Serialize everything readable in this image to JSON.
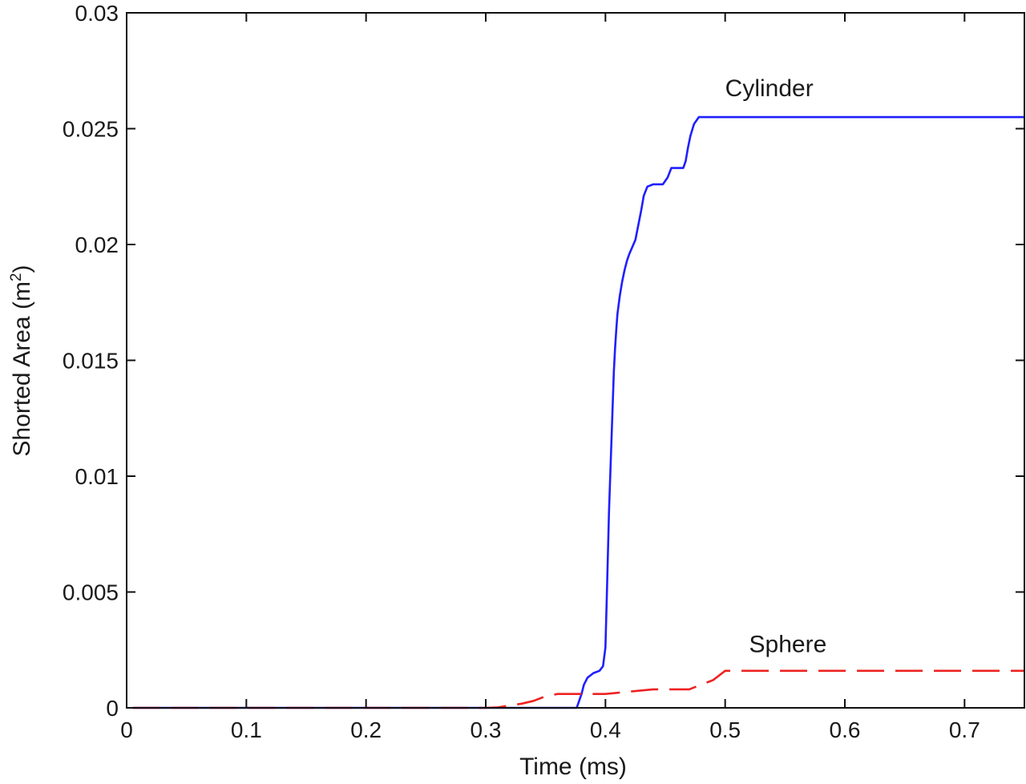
{
  "chart_data": {
    "type": "line",
    "xlabel": "Time (ms)",
    "ylabel_base": "Shorted Area (m",
    "ylabel_sup": "2",
    "ylabel_close": ")",
    "xlim": [
      0,
      0.75
    ],
    "ylim": [
      0,
      0.03
    ],
    "xticks": [
      0,
      0.1,
      0.2,
      0.3,
      0.4,
      0.5,
      0.6,
      0.7
    ],
    "xtick_labels": [
      "0",
      "0.1",
      "0.2",
      "0.3",
      "0.4",
      "0.5",
      "0.6",
      "0.7"
    ],
    "yticks": [
      0,
      0.005,
      0.01,
      0.015,
      0.02,
      0.025,
      0.03
    ],
    "ytick_labels": [
      "0",
      "0.005",
      "0.01",
      "0.015",
      "0.02",
      "0.025",
      "0.03"
    ],
    "grid": false,
    "series": [
      {
        "name": "Cylinder",
        "color": "#1f1fff",
        "style": "solid",
        "x": [
          0.005,
          0.05,
          0.1,
          0.2,
          0.3,
          0.33,
          0.35,
          0.376,
          0.38,
          0.382,
          0.385,
          0.39,
          0.395,
          0.398,
          0.4,
          0.401,
          0.402,
          0.403,
          0.404,
          0.405,
          0.406,
          0.407,
          0.408,
          0.409,
          0.41,
          0.412,
          0.414,
          0.416,
          0.418,
          0.42,
          0.425,
          0.43,
          0.432,
          0.435,
          0.44,
          0.445,
          0.448,
          0.452,
          0.455,
          0.46,
          0.465,
          0.467,
          0.469,
          0.471,
          0.474,
          0.478,
          0.48,
          0.5,
          0.6,
          0.7,
          0.75
        ],
        "y": [
          0,
          0,
          0,
          0,
          0,
          0,
          0,
          0,
          0.0006,
          0.001,
          0.0013,
          0.0015,
          0.0016,
          0.0018,
          0.0026,
          0.0045,
          0.0065,
          0.0085,
          0.01,
          0.0115,
          0.013,
          0.0145,
          0.0155,
          0.0163,
          0.017,
          0.0178,
          0.0184,
          0.0189,
          0.0193,
          0.0196,
          0.0202,
          0.0215,
          0.0221,
          0.0225,
          0.0226,
          0.0226,
          0.0226,
          0.0229,
          0.0233,
          0.0233,
          0.0233,
          0.0236,
          0.0242,
          0.0247,
          0.0252,
          0.0255,
          0.0255,
          0.0255,
          0.0255,
          0.0255,
          0.0255
        ]
      },
      {
        "name": "Sphere",
        "color": "#ee2222",
        "style": "dashed",
        "x": [
          0.005,
          0.1,
          0.2,
          0.3,
          0.31,
          0.32,
          0.33,
          0.34,
          0.35,
          0.36,
          0.38,
          0.4,
          0.42,
          0.44,
          0.46,
          0.47,
          0.48,
          0.49,
          0.5,
          0.6,
          0.7,
          0.75
        ],
        "y": [
          0,
          0,
          0,
          0,
          2e-05,
          0.0001,
          0.00018,
          0.0003,
          0.0005,
          0.0006,
          0.0006,
          0.0006,
          0.0007,
          0.0008,
          0.0008,
          0.0008,
          0.001,
          0.0012,
          0.0016,
          0.0016,
          0.0016,
          0.0016
        ]
      }
    ],
    "annotations": [
      {
        "text": "Cylinder",
        "x": 0.5,
        "y": 0.0264,
        "series": "Cylinder"
      },
      {
        "text": "Sphere",
        "x": 0.52,
        "y": 0.0024,
        "series": "Sphere"
      }
    ]
  }
}
